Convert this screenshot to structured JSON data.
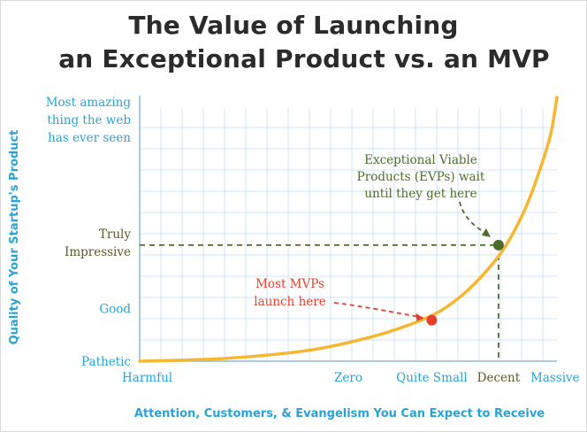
{
  "chart_data": {
    "type": "line",
    "title_line1": "The Value of Launching",
    "title_line2": "an Exceptional Product vs. an MVP",
    "xlabel": "Attention, Customers, & Evangelism You Can Expect to Receive",
    "ylabel": "Quality of Your Startup's Product",
    "x_ticks": [
      "Harmful",
      "Zero",
      "Quite Small",
      "Decent",
      "Massive"
    ],
    "y_ticks": [
      {
        "lines": [
          "Most amazing",
          "thing the web",
          "has ever seen"
        ]
      },
      {
        "lines": [
          "Truly",
          "Impressive"
        ]
      },
      {
        "lines": [
          "Good"
        ]
      },
      {
        "lines": [
          "Pathetic"
        ]
      }
    ],
    "x_values": {
      "Harmful": 0,
      "Zero": 0.5,
      "Quite Small": 0.7,
      "Decent": 0.86,
      "Massive": 1.0
    },
    "y_values": {
      "Pathetic": 0,
      "Good": 0.2,
      "Truly Impressive": 0.45,
      "Most amazing thing the web has ever seen": 0.92
    },
    "curve": {
      "color": "#f5b731",
      "points": [
        [
          0.0,
          0.0
        ],
        [
          0.2,
          0.01
        ],
        [
          0.4,
          0.04
        ],
        [
          0.55,
          0.09
        ],
        [
          0.65,
          0.14
        ],
        [
          0.72,
          0.19
        ],
        [
          0.78,
          0.26
        ],
        [
          0.83,
          0.34
        ],
        [
          0.87,
          0.42
        ],
        [
          0.9,
          0.5
        ],
        [
          0.93,
          0.6
        ],
        [
          0.96,
          0.73
        ],
        [
          0.985,
          0.86
        ],
        [
          1.0,
          1.0
        ]
      ]
    },
    "markers": [
      {
        "name": "Most MVPs",
        "x": 0.7,
        "y": 0.155,
        "color": "#e5402c",
        "label_lines": [
          "Most MVPs",
          "launch here"
        ]
      },
      {
        "name": "EVPs",
        "x": 0.86,
        "y": 0.44,
        "color": "#4e6b2b",
        "label_lines": [
          "Exceptional Viable",
          "Products (EVPs) wait",
          "until they get here"
        ]
      }
    ],
    "grid": true,
    "colors": {
      "axis_text": "#27a3d8",
      "grid": "#cfe6f4",
      "ylabel_olive": "#5a5a2c",
      "title": "#2b2b2b"
    }
  }
}
